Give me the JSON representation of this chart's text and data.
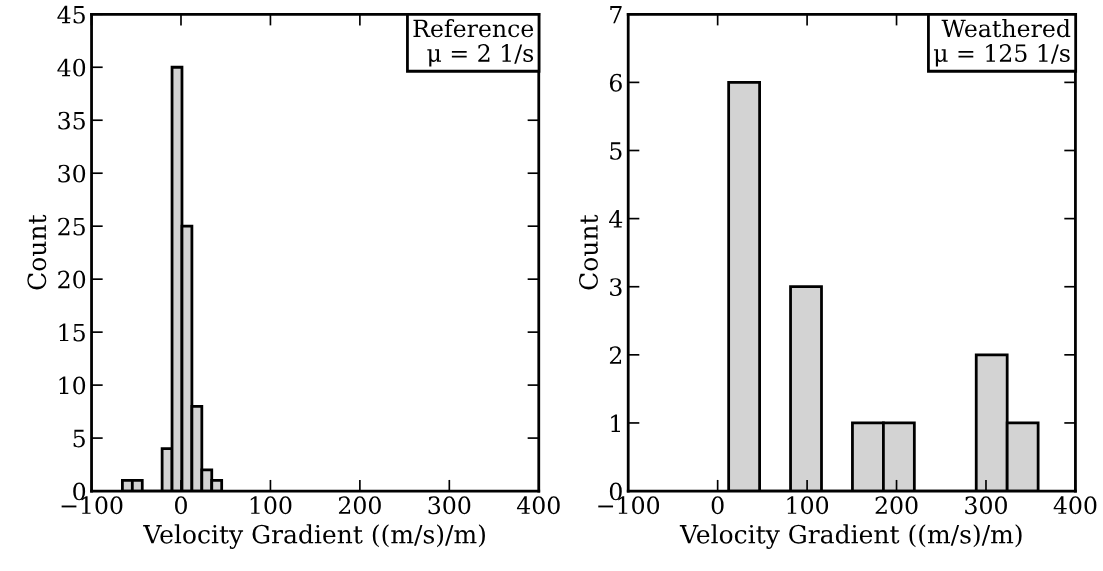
{
  "chart_data": [
    {
      "type": "histogram",
      "xlabel": "Velocity Gradient ((m/s)/m)",
      "ylabel": "Count",
      "color": "#d3d3d3",
      "bins": [
        -65.5,
        -54.4,
        -43.3,
        -32.2,
        -21.1,
        -10.0,
        1.1,
        12.2,
        23.3,
        34.4,
        45.5
      ],
      "values": [
        1,
        1,
        0,
        0,
        4,
        40,
        25,
        8,
        2,
        1
      ],
      "xlim": [
        -100,
        400
      ],
      "xticks": [
        {
          "value": -100,
          "label": "−100"
        },
        0,
        100,
        200,
        300,
        400
      ],
      "ylim": [
        0,
        45
      ],
      "yticks": [
        0,
        5,
        10,
        15,
        20,
        25,
        30,
        35,
        40,
        45
      ],
      "annotations": [
        "Reference\nμ = 2 1/s"
      ]
    },
    {
      "type": "histogram",
      "xlabel": "Velocity Gradient ((m/s)/m)",
      "ylabel": "Count",
      "color": "#d3d3d3",
      "bins": [
        12.3,
        46.9,
        81.5,
        116.1,
        150.7,
        185.3,
        219.9,
        254.5,
        289.1,
        323.7,
        358.3
      ],
      "values": [
        6,
        0,
        3,
        0,
        1,
        1,
        0,
        0,
        2,
        1
      ],
      "xlim": [
        -100,
        400
      ],
      "xticks": [
        {
          "value": -100,
          "label": "−100"
        },
        0,
        100,
        200,
        300,
        400
      ],
      "ylim": [
        0,
        7
      ],
      "yticks": [
        0,
        1,
        2,
        3,
        4,
        5,
        6,
        7
      ],
      "annotations": [
        "Weathered\nμ = 125 1/s"
      ]
    }
  ]
}
